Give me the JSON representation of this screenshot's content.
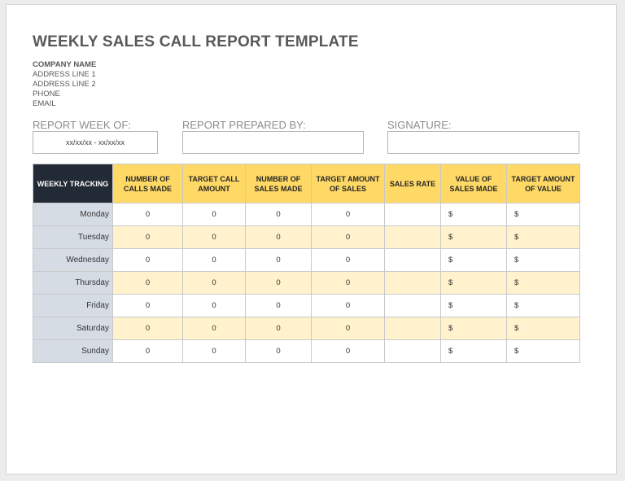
{
  "document": {
    "title": "WEEKLY SALES CALL REPORT TEMPLATE",
    "company": {
      "name": "COMPANY NAME",
      "address_line_1": "ADDRESS LINE 1",
      "address_line_2": "ADDRESS LINE 2",
      "phone": "PHONE",
      "email": "EMAIL"
    },
    "fields": {
      "report_week_label": "REPORT WEEK OF:",
      "report_week_value": "xx/xx/xx - xx/xx/xx",
      "prepared_by_label": "REPORT PREPARED BY:",
      "prepared_by_value": "",
      "signature_label": "SIGNATURE:",
      "signature_value": ""
    }
  },
  "table": {
    "headers": [
      "WEEKLY TRACKING",
      "NUMBER OF CALLS MADE",
      "TARGET CALL AMOUNT",
      "NUMBER OF SALES MADE",
      "TARGET AMOUNT OF SALES",
      "SALES RATE",
      "VALUE OF SALES MADE",
      "TARGET AMOUNT OF VALUE"
    ],
    "rows": [
      {
        "day": "Monday",
        "calls": "0",
        "target_calls": "0",
        "sales": "0",
        "target_sales": "0",
        "rate": "",
        "value": "$",
        "target_value": "$"
      },
      {
        "day": "Tuesday",
        "calls": "0",
        "target_calls": "0",
        "sales": "0",
        "target_sales": "0",
        "rate": "",
        "value": "$",
        "target_value": "$"
      },
      {
        "day": "Wednesday",
        "calls": "0",
        "target_calls": "0",
        "sales": "0",
        "target_sales": "0",
        "rate": "",
        "value": "$",
        "target_value": "$"
      },
      {
        "day": "Thursday",
        "calls": "0",
        "target_calls": "0",
        "sales": "0",
        "target_sales": "0",
        "rate": "",
        "value": "$",
        "target_value": "$"
      },
      {
        "day": "Friday",
        "calls": "0",
        "target_calls": "0",
        "sales": "0",
        "target_sales": "0",
        "rate": "",
        "value": "$",
        "target_value": "$"
      },
      {
        "day": "Saturday",
        "calls": "0",
        "target_calls": "0",
        "sales": "0",
        "target_sales": "0",
        "rate": "",
        "value": "$",
        "target_value": "$"
      },
      {
        "day": "Sunday",
        "calls": "0",
        "target_calls": "0",
        "sales": "0",
        "target_sales": "0",
        "rate": "",
        "value": "$",
        "target_value": "$"
      }
    ]
  },
  "colors": {
    "header_dark": "#222a35",
    "header_accent": "#ffd966",
    "row_alt": "#fff2cc",
    "day_column": "#d6dce4"
  }
}
